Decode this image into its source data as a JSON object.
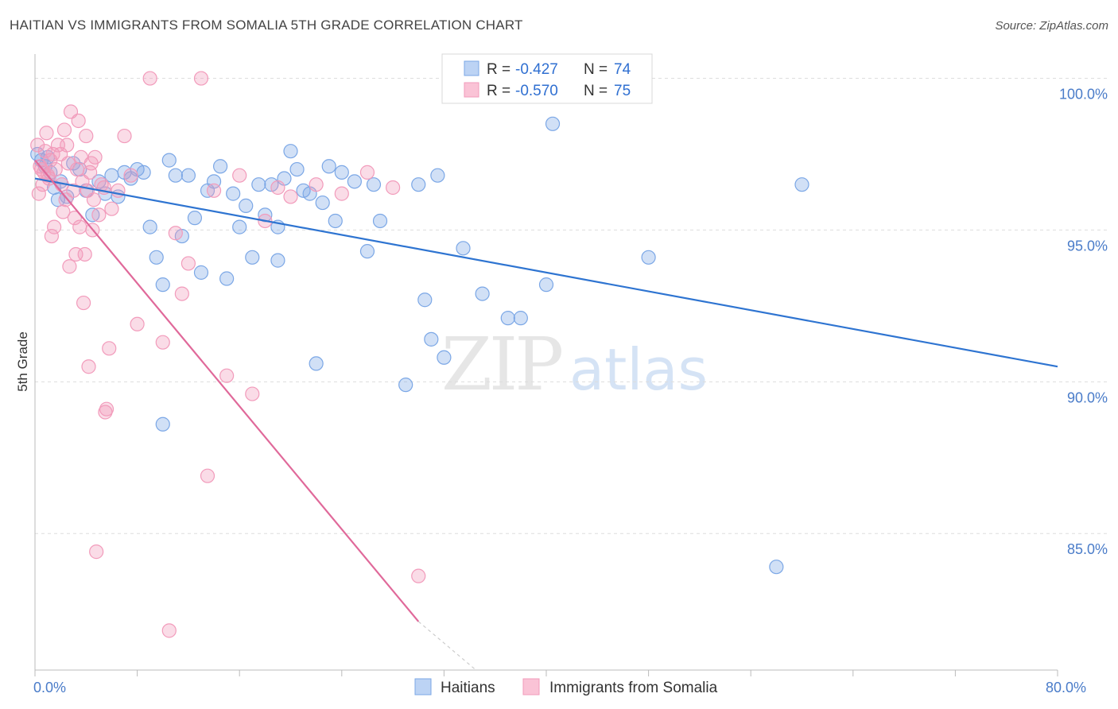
{
  "title": "HAITIAN VS IMMIGRANTS FROM SOMALIA 5TH GRADE CORRELATION CHART",
  "source": "Source: ZipAtlas.com",
  "watermark": {
    "zip": "ZIP",
    "atlas": "atlas"
  },
  "chart_data": {
    "type": "scatter",
    "ylabel": "5th Grade",
    "xlim": [
      0,
      80
    ],
    "ylim": [
      80.5,
      100.8
    ],
    "x_ticks": [
      0,
      8,
      16,
      24,
      32,
      40,
      48,
      56,
      64,
      72,
      80
    ],
    "x_tick_labels": {
      "0": "0.0%",
      "80": "80.0%"
    },
    "y_ticks": [
      85,
      90,
      95,
      100
    ],
    "y_tick_labels": [
      "85.0%",
      "90.0%",
      "95.0%",
      "100.0%"
    ],
    "grid": "horizontal dashed",
    "legend_top": [
      {
        "r_label": "R =",
        "r": "-0.427",
        "n_label": "N =",
        "n": "74"
      },
      {
        "r_label": "R =",
        "r": "-0.570",
        "n_label": "N =",
        "n": "75"
      }
    ],
    "series": [
      {
        "name": "Haitians",
        "color": "#7ba7e6",
        "line_color": "#2e74d1",
        "trend": {
          "x0": 0,
          "y0": 96.7,
          "x1": 80,
          "y1": 90.5
        },
        "points": [
          [
            0.2,
            97.5
          ],
          [
            0.5,
            97.3
          ],
          [
            0.8,
            97.1
          ],
          [
            1,
            97.4
          ],
          [
            1.2,
            96.9
          ],
          [
            1.5,
            96.4
          ],
          [
            1.8,
            96.0
          ],
          [
            2,
            96.6
          ],
          [
            2.5,
            96.1
          ],
          [
            3,
            97.2
          ],
          [
            3.5,
            97.0
          ],
          [
            4,
            96.3
          ],
          [
            4.5,
            95.5
          ],
          [
            5,
            96.6
          ],
          [
            5.5,
            96.2
          ],
          [
            6,
            96.8
          ],
          [
            6.5,
            96.1
          ],
          [
            7,
            96.9
          ],
          [
            7.5,
            96.7
          ],
          [
            8,
            97.0
          ],
          [
            8.5,
            96.9
          ],
          [
            9,
            95.1
          ],
          [
            9.5,
            94.1
          ],
          [
            10,
            93.2
          ],
          [
            10.5,
            97.3
          ],
          [
            11,
            96.8
          ],
          [
            11.5,
            94.8
          ],
          [
            12,
            96.8
          ],
          [
            12.5,
            95.4
          ],
          [
            13,
            93.6
          ],
          [
            13.5,
            96.3
          ],
          [
            14,
            96.6
          ],
          [
            14.5,
            97.1
          ],
          [
            15,
            93.4
          ],
          [
            15.5,
            96.2
          ],
          [
            16,
            95.1
          ],
          [
            16.5,
            95.8
          ],
          [
            17,
            94.1
          ],
          [
            17.5,
            96.5
          ],
          [
            18,
            95.5
          ],
          [
            18.5,
            96.5
          ],
          [
            19,
            95.1
          ],
          [
            19.5,
            96.7
          ],
          [
            20,
            97.6
          ],
          [
            20.5,
            97.0
          ],
          [
            21,
            96.3
          ],
          [
            21.5,
            96.2
          ],
          [
            22,
            90.6
          ],
          [
            22.5,
            95.9
          ],
          [
            23,
            97.1
          ],
          [
            23.5,
            95.3
          ],
          [
            24,
            96.9
          ],
          [
            25,
            96.6
          ],
          [
            26,
            94.3
          ],
          [
            26.5,
            96.5
          ],
          [
            27,
            95.3
          ],
          [
            29,
            89.9
          ],
          [
            30,
            96.5
          ],
          [
            30.5,
            92.7
          ],
          [
            31,
            91.4
          ],
          [
            31.5,
            96.8
          ],
          [
            32,
            90.8
          ],
          [
            33,
            100.0
          ],
          [
            33.5,
            94.4
          ],
          [
            35,
            92.9
          ],
          [
            37,
            92.1
          ],
          [
            38,
            92.1
          ],
          [
            40,
            93.2
          ],
          [
            40.5,
            98.5
          ],
          [
            48,
            94.1
          ],
          [
            58,
            83.9
          ],
          [
            60,
            96.5
          ],
          [
            10,
            88.6
          ],
          [
            19,
            94.0
          ]
        ]
      },
      {
        "name": "Immigrants from Somalia",
        "color": "#f29bbb",
        "line_color": "#e0699a",
        "trend": {
          "x0": 0,
          "y0": 97.3,
          "x1": 30,
          "y1": 82.1
        },
        "trend_dashed": {
          "x0": 30,
          "y0": 82.1,
          "x1": 34.5,
          "y1": 80.5
        },
        "points": [
          [
            0.2,
            97.8
          ],
          [
            0.3,
            96.2
          ],
          [
            0.5,
            97.0
          ],
          [
            0.6,
            96.5
          ],
          [
            0.8,
            97.6
          ],
          [
            0.9,
            98.2
          ],
          [
            1,
            96.8
          ],
          [
            1.2,
            97.3
          ],
          [
            1.3,
            94.8
          ],
          [
            1.5,
            95.1
          ],
          [
            1.6,
            97.0
          ],
          [
            1.8,
            97.8
          ],
          [
            2,
            97.5
          ],
          [
            2.1,
            96.5
          ],
          [
            2.2,
            95.6
          ],
          [
            2.3,
            98.3
          ],
          [
            2.4,
            96.0
          ],
          [
            2.5,
            97.8
          ],
          [
            2.6,
            97.2
          ],
          [
            2.7,
            93.8
          ],
          [
            2.8,
            98.9
          ],
          [
            3,
            96.3
          ],
          [
            3.1,
            95.4
          ],
          [
            3.2,
            94.2
          ],
          [
            3.3,
            97.0
          ],
          [
            3.4,
            98.6
          ],
          [
            3.5,
            95.1
          ],
          [
            3.6,
            97.4
          ],
          [
            3.7,
            96.6
          ],
          [
            3.8,
            92.6
          ],
          [
            3.9,
            94.2
          ],
          [
            4,
            98.1
          ],
          [
            4.1,
            96.3
          ],
          [
            4.2,
            90.5
          ],
          [
            4.3,
            96.9
          ],
          [
            4.4,
            97.2
          ],
          [
            4.5,
            95.0
          ],
          [
            4.6,
            96.0
          ],
          [
            4.7,
            97.4
          ],
          [
            4.8,
            84.4
          ],
          [
            5,
            95.5
          ],
          [
            5.2,
            96.5
          ],
          [
            5.4,
            96.4
          ],
          [
            5.5,
            89.0
          ],
          [
            5.6,
            89.1
          ],
          [
            5.8,
            91.1
          ],
          [
            6,
            95.7
          ],
          [
            6.5,
            96.3
          ],
          [
            7,
            98.1
          ],
          [
            7.5,
            96.8
          ],
          [
            8,
            91.9
          ],
          [
            9,
            100.0
          ],
          [
            10,
            91.3
          ],
          [
            10.5,
            81.8
          ],
          [
            11,
            94.9
          ],
          [
            11.5,
            92.9
          ],
          [
            12,
            93.9
          ],
          [
            13,
            100.0
          ],
          [
            13.5,
            86.9
          ],
          [
            14,
            96.3
          ],
          [
            15,
            90.2
          ],
          [
            16,
            96.8
          ],
          [
            17,
            89.6
          ],
          [
            18,
            95.3
          ],
          [
            19,
            96.4
          ],
          [
            20,
            96.1
          ],
          [
            22,
            96.5
          ],
          [
            24,
            96.2
          ],
          [
            26,
            96.9
          ],
          [
            28,
            96.4
          ],
          [
            30,
            83.6
          ],
          [
            0.4,
            97.1
          ],
          [
            0.7,
            96.9
          ],
          [
            1.1,
            96.7
          ],
          [
            1.4,
            97.5
          ]
        ]
      }
    ]
  }
}
